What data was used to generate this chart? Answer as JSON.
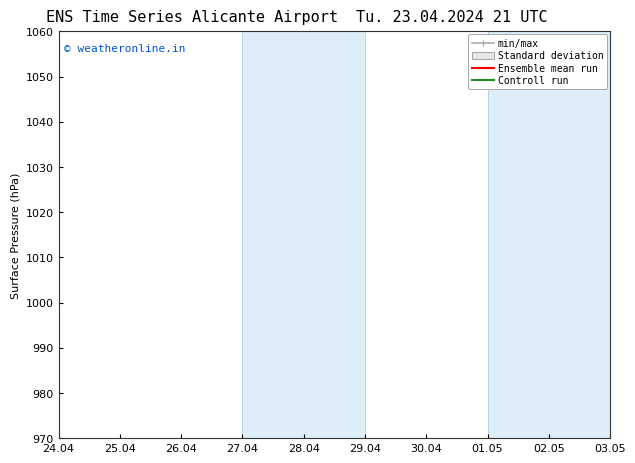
{
  "title_left": "ENS Time Series Alicante Airport",
  "title_right": "Tu. 23.04.2024 21 UTC",
  "ylabel": "Surface Pressure (hPa)",
  "ylim": [
    970,
    1060
  ],
  "yticks": [
    970,
    980,
    990,
    1000,
    1010,
    1020,
    1030,
    1040,
    1050,
    1060
  ],
  "xtick_labels": [
    "24.04",
    "25.04",
    "26.04",
    "27.04",
    "28.04",
    "29.04",
    "30.04",
    "01.05",
    "02.05",
    "03.05"
  ],
  "shaded_regions": [
    {
      "start": 3,
      "end": 5
    },
    {
      "start": 7,
      "end": 9
    }
  ],
  "shaded_color": "#deeef8",
  "shaded_edge_color": "#b8d4e8",
  "watermark_text": "© weatheronline.in",
  "watermark_color": "#0055cc",
  "title_fontsize": 11,
  "axis_label_fontsize": 8,
  "tick_fontsize": 8,
  "watermark_fontsize": 8,
  "background_color": "#ffffff",
  "legend_minmax_color": "#aaaaaa",
  "legend_std_facecolor": "#dddddd",
  "legend_std_edgecolor": "#aaaaaa",
  "legend_ens_color": "#ff0000",
  "legend_ctrl_color": "#228b22"
}
